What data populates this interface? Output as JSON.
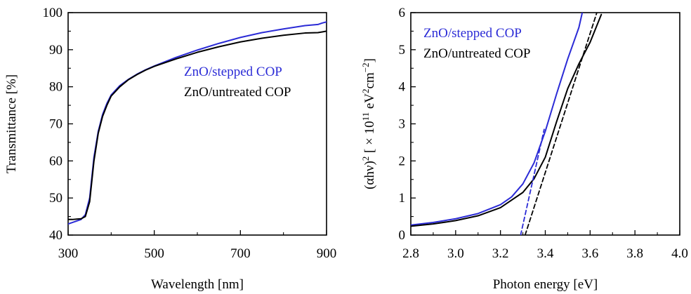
{
  "colors": {
    "stepped": "#2b2bd6",
    "untreated": "#000000"
  },
  "chart_data": [
    {
      "type": "line",
      "title": "",
      "xlabel": "Wavelength [nm]",
      "ylabel": "Transmittance [%]",
      "xlim": [
        300,
        900
      ],
      "ylim": [
        40,
        100
      ],
      "xticks": [
        300,
        500,
        700,
        900
      ],
      "yticks": [
        40,
        50,
        60,
        70,
        80,
        90,
        100
      ],
      "xtick_labels": [
        "300",
        "500",
        "700",
        "900"
      ],
      "ytick_labels": [
        "40",
        "50",
        "60",
        "70",
        "80",
        "90",
        "100"
      ],
      "legend": [
        "ZnO/stepped COP",
        "ZnO/untreated COP"
      ],
      "legend_position": "center-right",
      "grid": false,
      "series": [
        {
          "name": "ZnO/stepped COP",
          "color": "#2b2bd6",
          "points": [
            [
              300,
              43
            ],
            [
              310,
              43.4
            ],
            [
              320,
              43.8
            ],
            [
              330,
              44.2
            ],
            [
              340,
              45.5
            ],
            [
              350,
              50
            ],
            [
              360,
              61
            ],
            [
              370,
              68
            ],
            [
              380,
              72.5
            ],
            [
              390,
              75.5
            ],
            [
              400,
              77.8
            ],
            [
              420,
              80.3
            ],
            [
              440,
              82
            ],
            [
              460,
              83.4
            ],
            [
              480,
              84.6
            ],
            [
              500,
              85.6
            ],
            [
              550,
              87.9
            ],
            [
              600,
              89.9
            ],
            [
              650,
              91.7
            ],
            [
              700,
              93.3
            ],
            [
              750,
              94.6
            ],
            [
              800,
              95.6
            ],
            [
              850,
              96.5
            ],
            [
              880,
              96.8
            ],
            [
              890,
              97.2
            ],
            [
              900,
              97.5
            ]
          ]
        },
        {
          "name": "ZnO/untreated COP",
          "color": "#000000",
          "points": [
            [
              300,
              44.2
            ],
            [
              310,
              44.2
            ],
            [
              320,
              44.3
            ],
            [
              330,
              44.4
            ],
            [
              340,
              45
            ],
            [
              350,
              49
            ],
            [
              360,
              60
            ],
            [
              370,
              67.5
            ],
            [
              380,
              72
            ],
            [
              390,
              75
            ],
            [
              400,
              77.5
            ],
            [
              420,
              80
            ],
            [
              440,
              81.9
            ],
            [
              460,
              83.3
            ],
            [
              480,
              84.5
            ],
            [
              500,
              85.5
            ],
            [
              550,
              87.5
            ],
            [
              600,
              89.3
            ],
            [
              650,
              90.8
            ],
            [
              700,
              92.1
            ],
            [
              750,
              93.1
            ],
            [
              800,
              93.9
            ],
            [
              850,
              94.5
            ],
            [
              880,
              94.6
            ],
            [
              890,
              94.8
            ],
            [
              900,
              95
            ]
          ]
        }
      ]
    },
    {
      "type": "line",
      "title": "",
      "xlabel": "Photon energy [eV]",
      "ylabel": "(αhν)² [ × 10¹¹ eV²cm⁻²]",
      "xlim": [
        2.8,
        4.0
      ],
      "ylim": [
        0,
        6
      ],
      "xticks": [
        2.8,
        3.0,
        3.2,
        3.4,
        3.6,
        3.8,
        4.0
      ],
      "yticks": [
        0,
        1,
        2,
        3,
        4,
        5,
        6
      ],
      "xtick_labels": [
        "2.8",
        "3.0",
        "3.2",
        "3.4",
        "3.6",
        "3.8",
        "4.0"
      ],
      "ytick_labels": [
        "0",
        "1",
        "2",
        "3",
        "4",
        "5",
        "6"
      ],
      "legend": [
        "ZnO/stepped COP",
        "ZnO/untreated COP"
      ],
      "legend_position": "top-left",
      "grid": false,
      "series": [
        {
          "name": "ZnO/stepped COP",
          "color": "#2b2bd6",
          "style": "solid",
          "points": [
            [
              2.8,
              0.27
            ],
            [
              2.9,
              0.34
            ],
            [
              3.0,
              0.44
            ],
            [
              3.1,
              0.58
            ],
            [
              3.2,
              0.82
            ],
            [
              3.25,
              1.03
            ],
            [
              3.3,
              1.38
            ],
            [
              3.35,
              1.95
            ],
            [
              3.4,
              2.8
            ],
            [
              3.45,
              3.8
            ],
            [
              3.5,
              4.75
            ],
            [
              3.55,
              5.6
            ],
            [
              3.565,
              6.0
            ]
          ]
        },
        {
          "name": "ZnO/untreated COP",
          "color": "#000000",
          "style": "solid",
          "points": [
            [
              2.8,
              0.24
            ],
            [
              2.9,
              0.3
            ],
            [
              3.0,
              0.39
            ],
            [
              3.1,
              0.52
            ],
            [
              3.2,
              0.74
            ],
            [
              3.3,
              1.15
            ],
            [
              3.35,
              1.52
            ],
            [
              3.4,
              2.1
            ],
            [
              3.45,
              3.05
            ],
            [
              3.5,
              3.95
            ],
            [
              3.55,
              4.62
            ],
            [
              3.6,
              5.2
            ],
            [
              3.65,
              5.95
            ]
          ]
        },
        {
          "name": "",
          "color": "#2b2bd6",
          "style": "dashed",
          "points": [
            [
              3.29,
              0
            ],
            [
              3.395,
              2.85
            ]
          ]
        },
        {
          "name": "",
          "color": "#000000",
          "style": "dashed",
          "points": [
            [
              3.31,
              0
            ],
            [
              3.63,
              6.0
            ]
          ]
        }
      ]
    }
  ]
}
